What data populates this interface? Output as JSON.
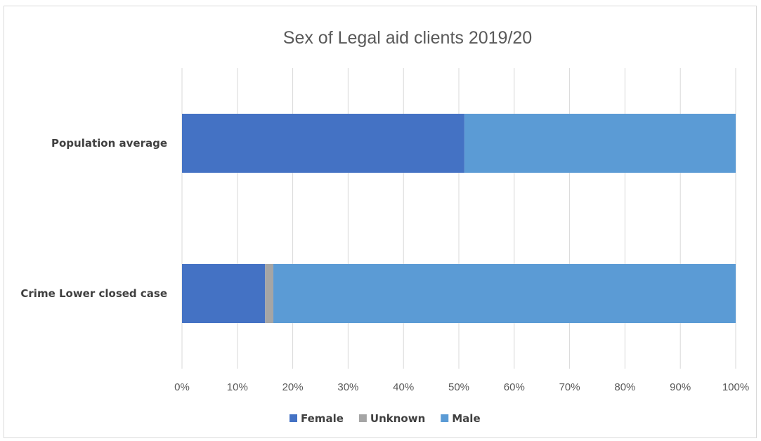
{
  "chart_data": {
    "type": "bar",
    "orientation": "horizontal",
    "stacked": true,
    "title": "Sex of Legal aid clients 2019/20",
    "categories": [
      "Population average",
      "Crime Lower closed case"
    ],
    "series": [
      {
        "name": "Female",
        "color": "#4472C4",
        "values": [
          51,
          15
        ]
      },
      {
        "name": "Unknown",
        "color": "#A5A5A5",
        "values": [
          0,
          1.5
        ]
      },
      {
        "name": "Male",
        "color": "#5B9BD5",
        "values": [
          49,
          83.5
        ]
      }
    ],
    "xlim": [
      0,
      100
    ],
    "x_ticks": [
      "0%",
      "10%",
      "20%",
      "30%",
      "40%",
      "50%",
      "60%",
      "70%",
      "80%",
      "90%",
      "100%"
    ],
    "grid": true,
    "legend_position": "bottom"
  }
}
